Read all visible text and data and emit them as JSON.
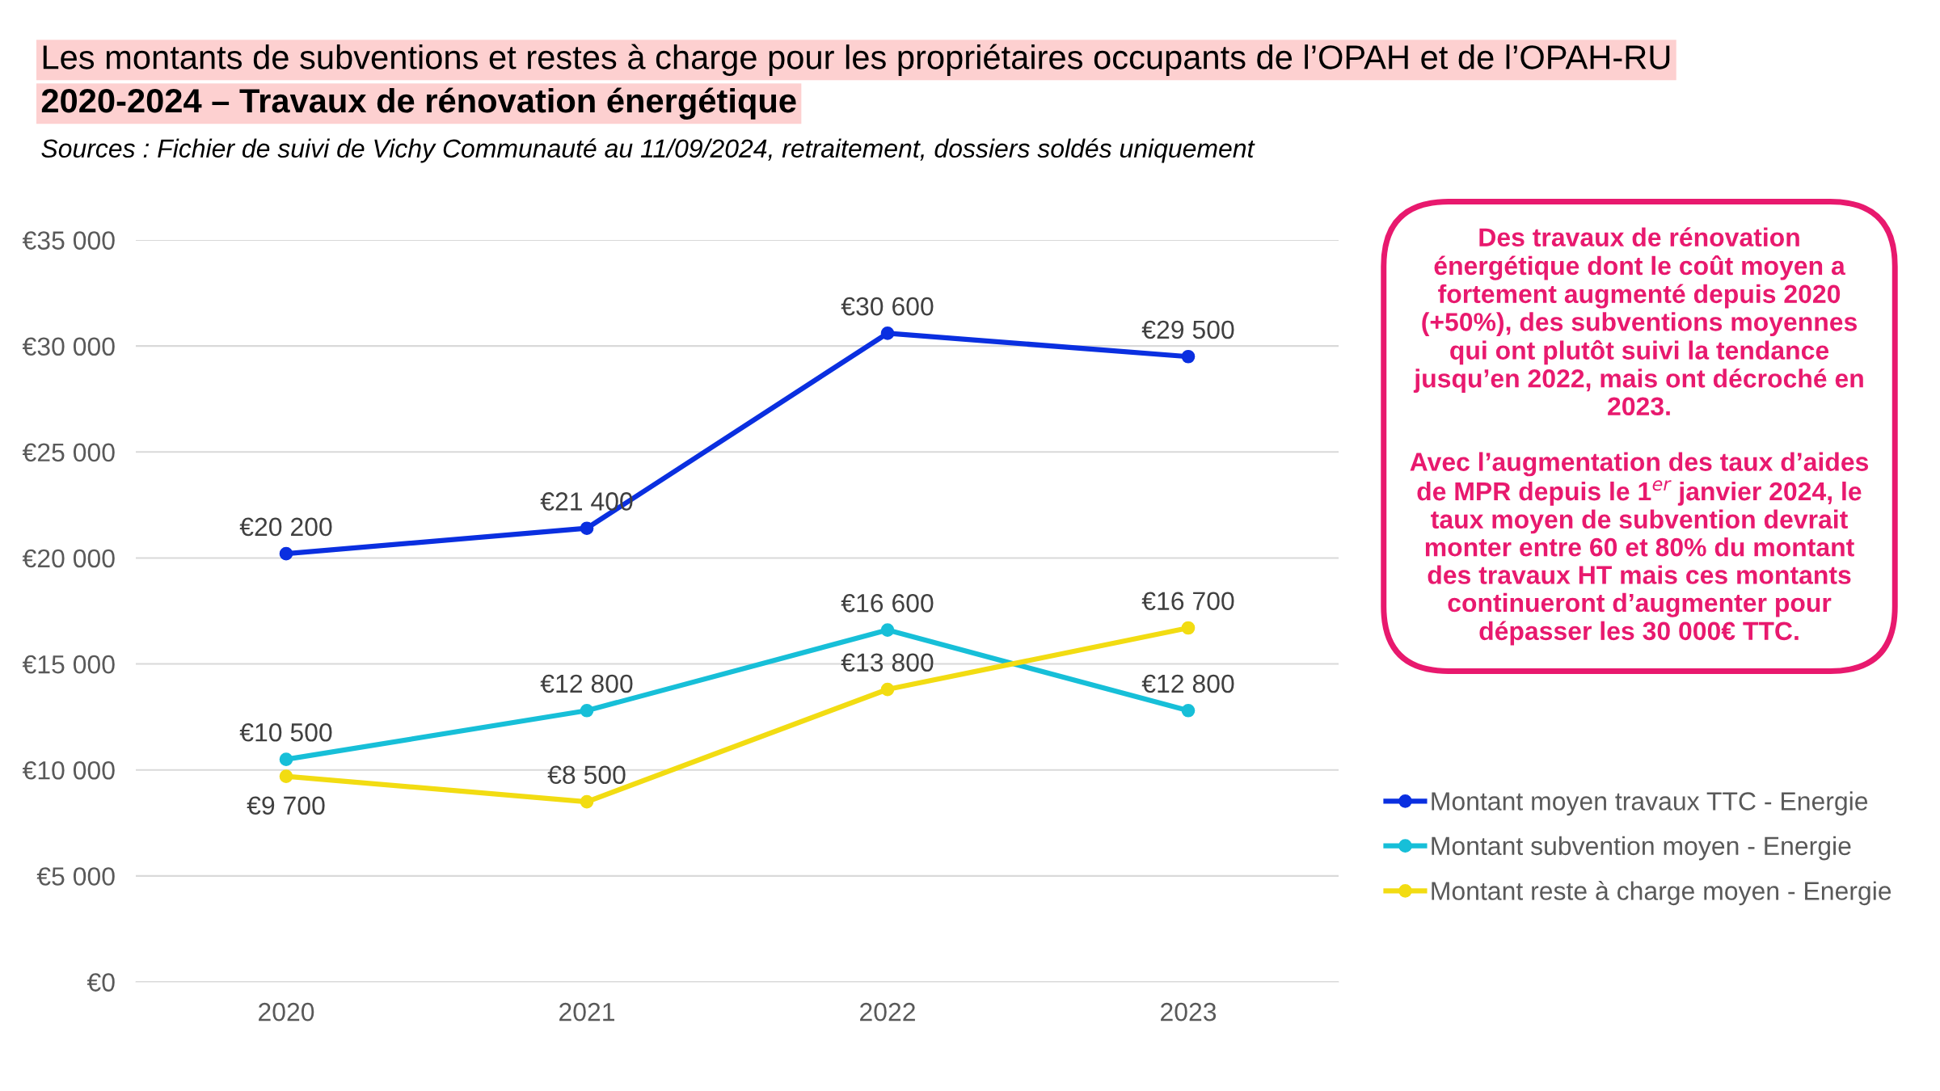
{
  "chart_data": {
    "type": "line",
    "title": "Les montants de subventions et restes à charge pour les propriétaires occupants de l’OPAH et de l’OPAH-RU",
    "subtitle": "2020-2024 – Travaux de rénovation énergétique",
    "annotations": [
      "Sources : Fichier de suivi de Vichy Communauté au 11/09/2024, retraitement, dossiers soldés uniquement",
      "Des travaux de rénovation\nénergétique dont le coût moyen a\nfortement augmenté depuis 2020\n(+50%), des subventions moyennes\nqui ont plutôt suivi la tendance\njusqu’en 2022, mais ont décroché en\n2023.\n\nAvec l’augmentation des taux d’aides\nde MPR depuis le 1$^{er}$ janvier 2024, le\ntaux moyen de subvention devrait\nmonter entre 60 et 80% du montant\ndes travaux HT mais ces montants\ncontinueront d’augmenter pour\ndépasser les 30 000€ TTC."
    ],
    "categories": [
      "2020",
      "2021",
      "2022",
      "2023"
    ],
    "series": [
      {
        "name": "Montant moyen travaux TTC - Energie",
        "color": "#0a2fe0",
        "values": [
          20200,
          21400,
          30600,
          29500
        ],
        "value_labels": [
          "€20 200",
          "€21 400",
          "€30 600",
          "€29 500"
        ]
      },
      {
        "name": "Montant subvention moyen - Energie",
        "color": "#17bfd8",
        "values": [
          10500,
          12800,
          16600,
          12800
        ],
        "value_labels": [
          "€10 500",
          "€12 800",
          "€16 600",
          "€12 800"
        ]
      },
      {
        "name": "Montant reste à charge moyen - Energie",
        "color": "#f2dc12",
        "values": [
          9700,
          8500,
          13800,
          16700
        ],
        "value_labels": [
          "€9 700",
          "€8 500",
          "€13 800",
          "€16 700"
        ]
      }
    ],
    "ylim": [
      0,
      35000
    ],
    "yticks": [
      {
        "value": 0,
        "label": "€0"
      },
      {
        "value": 5000,
        "label": "€5 000"
      },
      {
        "value": 10000,
        "label": "€10 000"
      },
      {
        "value": 15000,
        "label": "€15 000"
      },
      {
        "value": 20000,
        "label": "€20 000"
      },
      {
        "value": 25000,
        "label": "€25 000"
      },
      {
        "value": 30000,
        "label": "€30 000"
      },
      {
        "value": 35000,
        "label": "€35 000"
      }
    ],
    "grid": "y",
    "legend": "right",
    "marker": "circle",
    "line_style": "solid"
  }
}
